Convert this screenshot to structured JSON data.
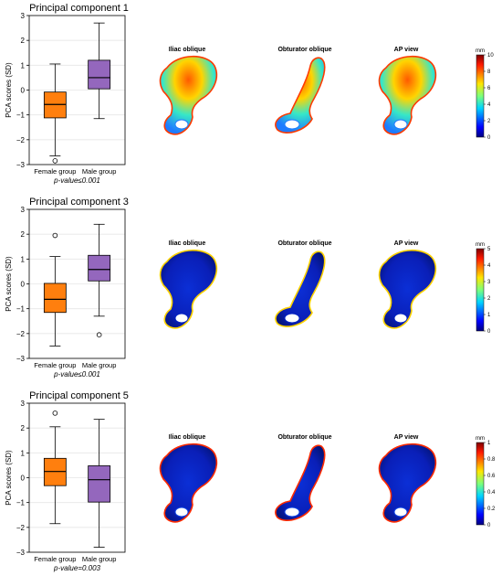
{
  "figure": {
    "panels": [
      {
        "title": "Principal component 1",
        "pvalue_text": "p-value≤0.001",
        "ylabel": "PCA scores (SD)",
        "ylim": [
          -3,
          3
        ],
        "yticks": [
          3,
          2,
          1,
          0,
          -1,
          -2,
          -3
        ],
        "views": [
          "Iliac oblique",
          "Obturator oblique",
          "AP view"
        ],
        "colorbar": {
          "unit": "mm",
          "min": 0,
          "max": 10,
          "ticks": [
            10,
            8,
            6,
            4,
            2,
            0
          ]
        }
      },
      {
        "title": "Principal component 3",
        "pvalue_text": "p-value≤0.001",
        "ylabel": "PCA scores (SD)",
        "ylim": [
          -3,
          3
        ],
        "yticks": [
          3,
          2,
          1,
          0,
          -1,
          -2,
          -3
        ],
        "views": [
          "Iliac oblique",
          "Obturator oblique",
          "AP view"
        ],
        "colorbar": {
          "unit": "mm",
          "min": 0,
          "max": 5,
          "ticks": [
            5,
            4,
            3,
            2,
            1,
            0
          ]
        }
      },
      {
        "title": "Principal component 5",
        "pvalue_text": "p-value=0.003",
        "ylabel": "PCA scores (SD)",
        "ylim": [
          -3,
          3
        ],
        "yticks": [
          3,
          2,
          1,
          0,
          -1,
          -2,
          -3
        ],
        "views": [
          "Iliac oblique",
          "Obturator oblique",
          "AP view"
        ],
        "colorbar": {
          "unit": "mm",
          "min": 0,
          "max": 1,
          "ticks": [
            1,
            0.8,
            0.6,
            0.4,
            0.2,
            0
          ]
        }
      }
    ]
  },
  "chart_data": [
    {
      "type": "box",
      "title": "Principal component 1",
      "ylabel": "PCA scores (SD)",
      "ylim": [
        -3,
        3
      ],
      "categories": [
        "Female group",
        "Male group"
      ],
      "colors": [
        "#ff7f0e",
        "#9467bd"
      ],
      "boxes": [
        {
          "whislo": -2.65,
          "q1": -1.12,
          "med": -0.58,
          "q3": -0.08,
          "whishi": 1.05,
          "fliers": [
            -2.85
          ]
        },
        {
          "whislo": -1.15,
          "q1": 0.05,
          "med": 0.5,
          "q3": 1.2,
          "whishi": 2.7,
          "fliers": []
        }
      ],
      "grid": "y"
    },
    {
      "type": "box",
      "title": "Principal component 3",
      "ylabel": "PCA scores (SD)",
      "ylim": [
        -3,
        3
      ],
      "categories": [
        "Female group",
        "Male group"
      ],
      "colors": [
        "#ff7f0e",
        "#9467bd"
      ],
      "boxes": [
        {
          "whislo": -2.5,
          "q1": -1.15,
          "med": -0.62,
          "q3": 0.02,
          "whishi": 1.1,
          "fliers": [
            1.95
          ]
        },
        {
          "whislo": -1.3,
          "q1": 0.12,
          "med": 0.58,
          "q3": 1.15,
          "whishi": 2.4,
          "fliers": [
            -2.05
          ]
        }
      ],
      "grid": "y"
    },
    {
      "type": "box",
      "title": "Principal component 5",
      "ylabel": "PCA scores (SD)",
      "ylim": [
        -3,
        3
      ],
      "categories": [
        "Female group",
        "Male group"
      ],
      "colors": [
        "#ff7f0e",
        "#9467bd"
      ],
      "boxes": [
        {
          "whislo": -1.85,
          "q1": -0.32,
          "med": 0.25,
          "q3": 0.78,
          "whishi": 2.05,
          "fliers": [
            2.6
          ]
        },
        {
          "whislo": -2.8,
          "q1": -0.98,
          "med": -0.08,
          "q3": 0.48,
          "whishi": 2.35,
          "fliers": []
        }
      ],
      "grid": "y"
    }
  ]
}
